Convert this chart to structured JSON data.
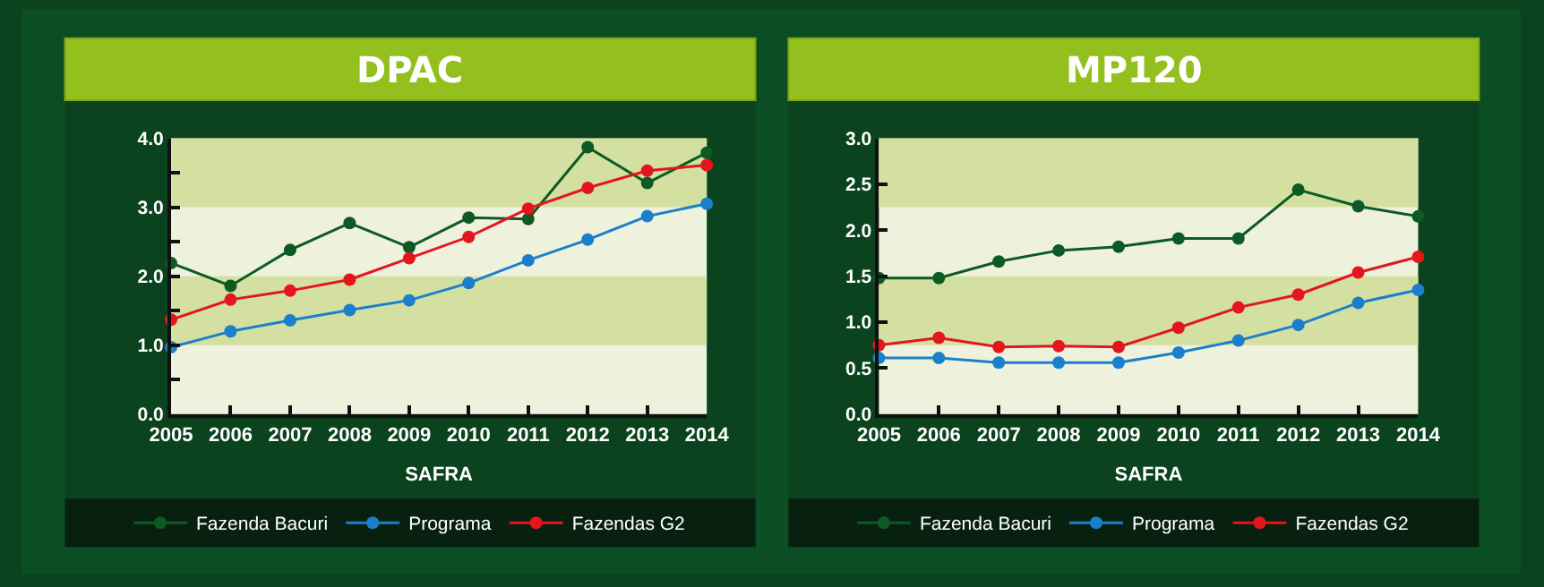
{
  "chart_data": [
    {
      "type": "line",
      "title": "DPAC",
      "xlabel": "SAFRA",
      "categories": [
        "2005",
        "2006",
        "2007",
        "2008",
        "2009",
        "2010",
        "2011",
        "2012",
        "2013",
        "2014"
      ],
      "series": [
        {
          "name": "Fazenda Bacuri",
          "color": "#0d5a24",
          "values": [
            2.19,
            1.86,
            2.38,
            2.77,
            2.42,
            2.85,
            2.83,
            3.87,
            3.35,
            3.79
          ]
        },
        {
          "name": "Programa",
          "color": "#1b7fcb",
          "values": [
            0.97,
            1.2,
            1.36,
            1.51,
            1.65,
            1.9,
            2.23,
            2.53,
            2.87,
            3.05
          ]
        },
        {
          "name": "Fazendas G2",
          "color": "#e3161e",
          "values": [
            1.37,
            1.66,
            1.79,
            1.95,
            2.26,
            2.57,
            2.98,
            3.28,
            3.53,
            3.61
          ]
        }
      ],
      "ylim": [
        0,
        4
      ],
      "yticks": [
        {
          "value": 0,
          "label": "0.0"
        },
        {
          "value": 0.5,
          "label": null
        },
        {
          "value": 1,
          "label": "1.0"
        },
        {
          "value": 1.5,
          "label": null
        },
        {
          "value": 2,
          "label": "2.0"
        },
        {
          "value": 2.5,
          "label": null
        },
        {
          "value": 3,
          "label": "3.0"
        },
        {
          "value": 3.5,
          "label": null
        },
        {
          "value": 4,
          "label": "4.0"
        }
      ],
      "bands": [
        {
          "axis": "y",
          "from": 1,
          "to": 2,
          "color": "#d4e0a2"
        },
        {
          "axis": "y",
          "from": 3,
          "to": 4,
          "color": "#d4e0a2"
        }
      ],
      "legend": "bottom",
      "marker": "circle",
      "line_style": "solid",
      "grid": false
    },
    {
      "type": "line",
      "title": "MP120",
      "xlabel": "SAFRA",
      "categories": [
        "2005",
        "2006",
        "2007",
        "2008",
        "2009",
        "2010",
        "2011",
        "2012",
        "2013",
        "2014"
      ],
      "series": [
        {
          "name": "Fazenda Bacuri",
          "color": "#0d5a24",
          "values": [
            1.48,
            1.48,
            1.66,
            1.78,
            1.82,
            1.91,
            1.91,
            2.44,
            2.26,
            2.15
          ]
        },
        {
          "name": "Programa",
          "color": "#1b7fcb",
          "values": [
            0.61,
            0.61,
            0.56,
            0.56,
            0.56,
            0.67,
            0.8,
            0.97,
            1.21,
            1.35
          ]
        },
        {
          "name": "Fazendas G2",
          "color": "#e3161e",
          "values": [
            0.75,
            0.83,
            0.73,
            0.74,
            0.73,
            0.94,
            1.16,
            1.3,
            1.54,
            1.71
          ]
        }
      ],
      "ylim": [
        0,
        3
      ],
      "yticks": [
        {
          "value": 0,
          "label": "0.0"
        },
        {
          "value": 0.5,
          "label": "0.5"
        },
        {
          "value": 1,
          "label": "1.0"
        },
        {
          "value": 1.5,
          "label": "1.5"
        },
        {
          "value": 2,
          "label": "2.0"
        },
        {
          "value": 2.5,
          "label": "2.5"
        },
        {
          "value": 3,
          "label": "3.0"
        }
      ],
      "bands": [
        {
          "axis": "y",
          "from": 0.75,
          "to": 1.5,
          "color": "#d4e0a2"
        },
        {
          "axis": "y",
          "from": 2.25,
          "to": 3,
          "color": "#d4e0a2"
        }
      ],
      "legend": "bottom",
      "marker": "circle",
      "line_style": "solid",
      "grid": false
    }
  ]
}
